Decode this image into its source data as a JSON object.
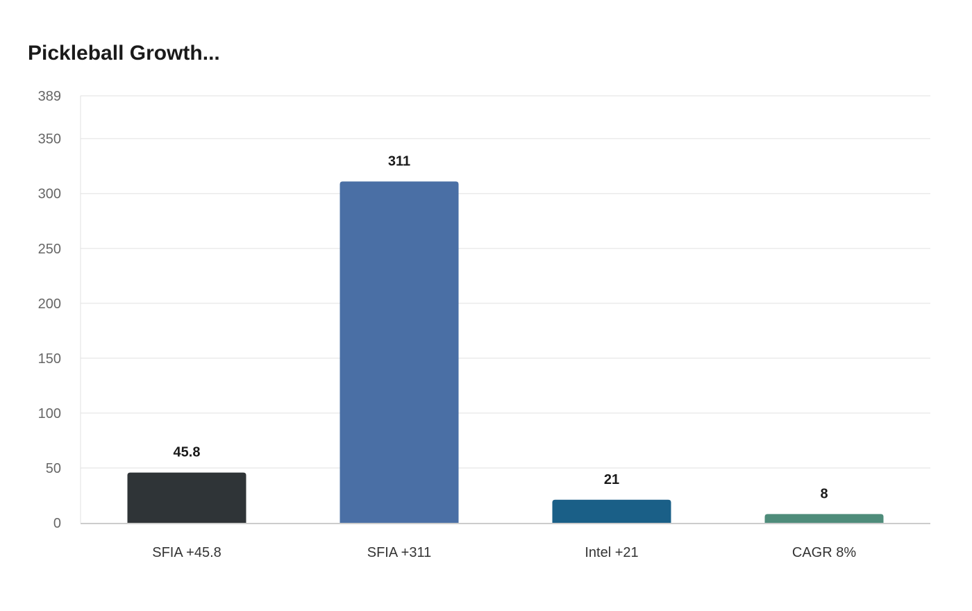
{
  "chart_data": {
    "type": "bar",
    "title": "Pickleball Growth...",
    "xlabel": "",
    "ylabel": "",
    "categories": [
      "SFIA +45.8",
      "SFIA +311",
      "Intel +21",
      "CAGR 8%"
    ],
    "values": [
      45.8,
      311,
      21,
      8
    ],
    "data_labels": [
      "45.8",
      "311",
      "21",
      "8"
    ],
    "colors": [
      "#2f3437",
      "#4a6fa5",
      "#1a5f87",
      "#4e8c7a"
    ],
    "ylim": [
      0,
      389
    ],
    "yticks": [
      0,
      50,
      100,
      150,
      200,
      250,
      300,
      350,
      389
    ],
    "grid": true,
    "legend": "none"
  }
}
